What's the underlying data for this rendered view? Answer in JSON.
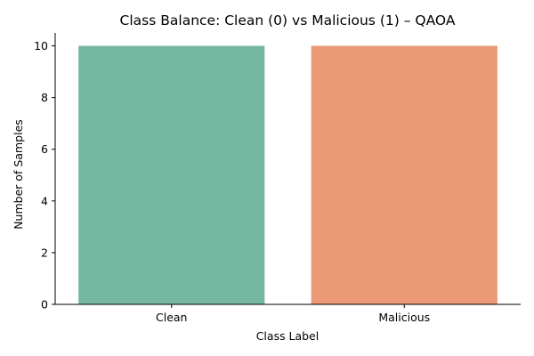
{
  "chart_data": {
    "type": "bar",
    "title": "Class Balance: Clean (0) vs Malicious (1) – QAOA",
    "xlabel": "Class Label",
    "ylabel": "Number of Samples",
    "categories": [
      "Clean",
      "Malicious"
    ],
    "values": [
      10,
      10
    ],
    "colors": [
      "#76b7a1",
      "#ea9875"
    ],
    "ylim": [
      0,
      10.5
    ],
    "yticks": [
      0,
      2,
      4,
      6,
      8,
      10
    ],
    "grid": false,
    "legend": "none"
  }
}
